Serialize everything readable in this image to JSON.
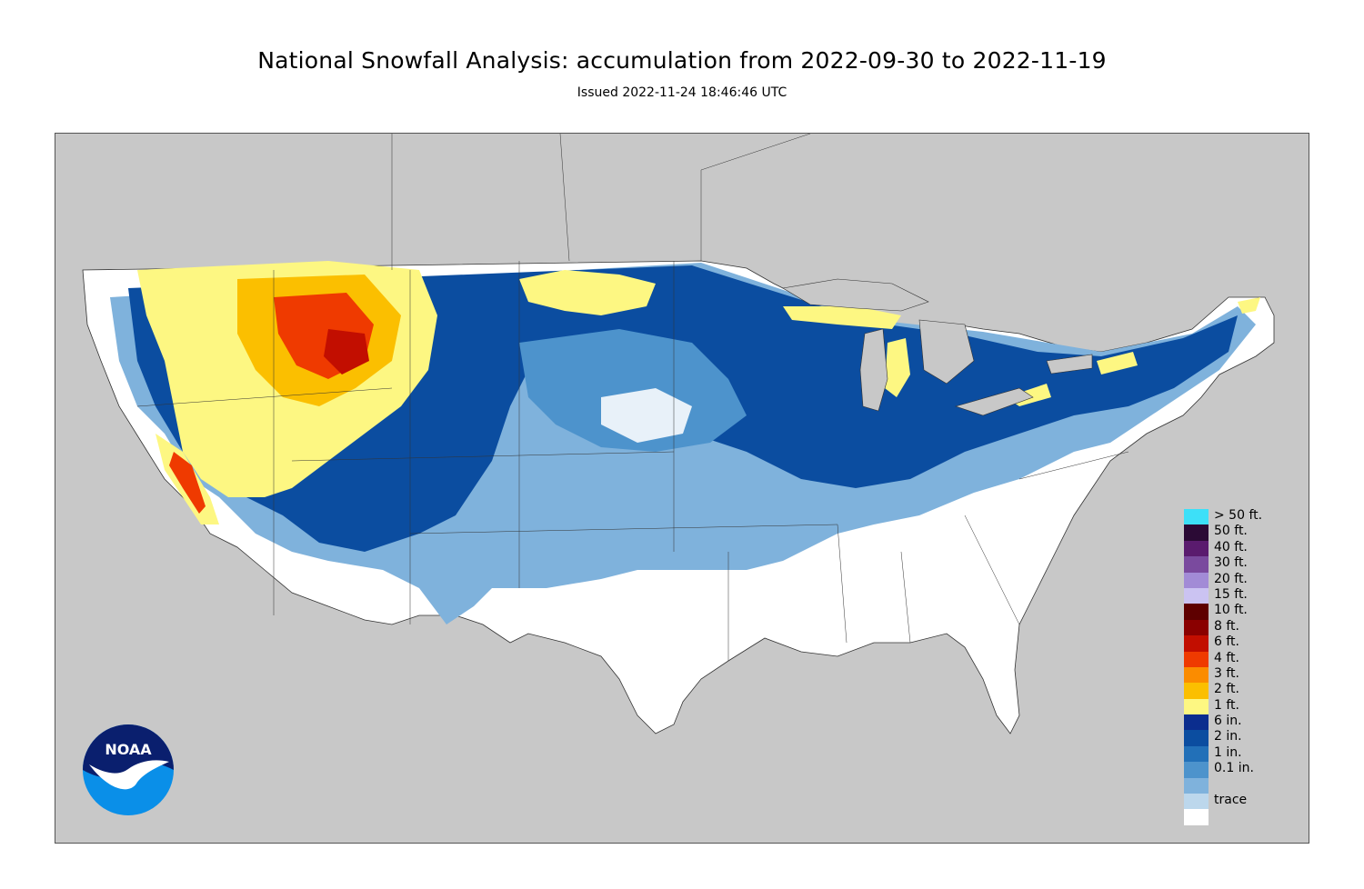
{
  "header": {
    "title": "National Snowfall Analysis: accumulation from 2022-09-30 to 2022-11-19",
    "subtitle": "Issued 2022-11-24 18:46:46 UTC"
  },
  "map": {
    "background_color": "#c8c8c8",
    "land_trace_color": "#ffffff"
  },
  "legend": {
    "items": [
      {
        "label": "> 50 ft.",
        "color": "#3de0f8"
      },
      {
        "label": "50 ft.",
        "color": "#2b0a35"
      },
      {
        "label": "40 ft.",
        "color": "#5a1b6e"
      },
      {
        "label": "30 ft.",
        "color": "#7a4a9e"
      },
      {
        "label": "20 ft.",
        "color": "#a28bd6"
      },
      {
        "label": "15 ft.",
        "color": "#cbc3f2"
      },
      {
        "label": "10 ft.",
        "color": "#5e0000"
      },
      {
        "label": "8 ft.",
        "color": "#8a0000"
      },
      {
        "label": "6 ft.",
        "color": "#c20e00"
      },
      {
        "label": "4 ft.",
        "color": "#ef3a00"
      },
      {
        "label": "3 ft.",
        "color": "#fb8c00"
      },
      {
        "label": "2 ft.",
        "color": "#fbbf00"
      },
      {
        "label": "1 ft.",
        "color": "#fdf782"
      },
      {
        "label": "6 in.",
        "color": "#0b2d8e"
      },
      {
        "label": "2 in.",
        "color": "#0b4da0"
      },
      {
        "label": "1 in.",
        "color": "#2270b8"
      },
      {
        "label": "0.1 in.",
        "color": "#4d93cc"
      },
      {
        "label": "",
        "color": "#7fb2dc"
      },
      {
        "label": "trace",
        "color": "#bcd7ec"
      },
      {
        "label": "",
        "color": "#ffffff"
      }
    ]
  },
  "logo": {
    "text": "NOAA"
  }
}
